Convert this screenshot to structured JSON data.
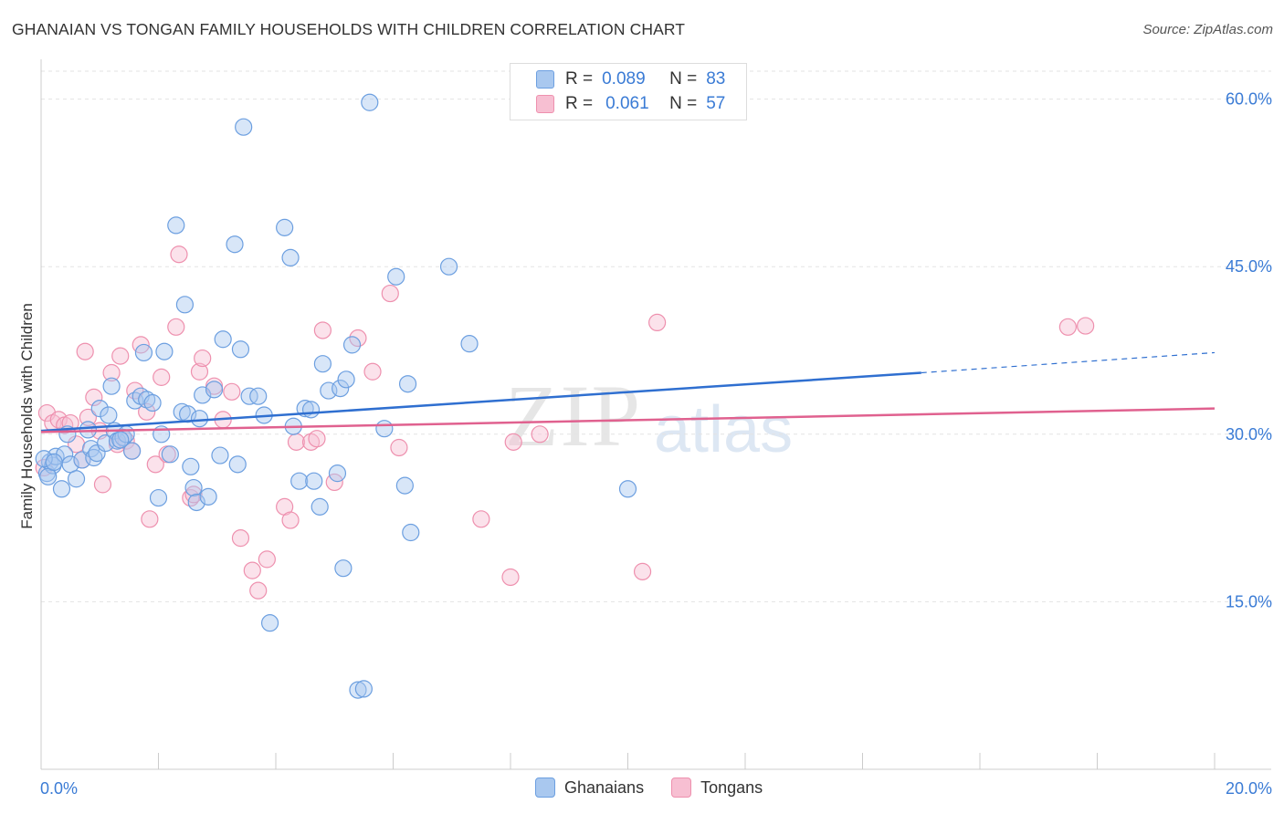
{
  "title": "GHANAIAN VS TONGAN FAMILY HOUSEHOLDS WITH CHILDREN CORRELATION CHART",
  "source": "Source: ZipAtlas.com",
  "watermark": {
    "zip": "ZIP",
    "atlas": "atlas"
  },
  "legend": {
    "r_label": "R =",
    "n_label": "N =",
    "ghanaian": {
      "r": "0.089",
      "n": "83"
    },
    "tongan": {
      "r": "0.061",
      "n": "57"
    }
  },
  "colors": {
    "ghanaian_fill": "#a9c8ef",
    "ghanaian_stroke": "#6c9fe0",
    "ghanaian_line": "#2f6fd0",
    "tongan_fill": "#f7bfd2",
    "tongan_stroke": "#ee90ae",
    "tongan_line": "#e0618f",
    "axis_text": "#3a7bd5"
  },
  "chart_data": {
    "type": "scatter",
    "xlabel": "",
    "ylabel": "Family Households with Children",
    "xlim": [
      0,
      20
    ],
    "ylim": [
      0,
      62.5
    ],
    "x_tick_labels": {
      "min": "0.0%",
      "max": "20.0%"
    },
    "y_ticks": [
      15,
      30,
      45,
      60
    ],
    "y_tick_labels": [
      "15.0%",
      "30.0%",
      "45.0%",
      "60.0%"
    ],
    "series": [
      {
        "name": "Ghanaians",
        "trend": {
          "x0": 0,
          "y0": 30.3,
          "x1": 15.0,
          "y1": 35.5,
          "dash_to_x": 20.0,
          "dash_to_y": 37.3
        },
        "points": [
          [
            0.1,
            26.5
          ],
          [
            0.15,
            27.5
          ],
          [
            0.2,
            27.2
          ],
          [
            0.25,
            28.0
          ],
          [
            0.35,
            25.1
          ],
          [
            0.4,
            28.2
          ],
          [
            0.45,
            30.0
          ],
          [
            0.5,
            27.3
          ],
          [
            0.6,
            26.0
          ],
          [
            0.7,
            27.7
          ],
          [
            0.8,
            30.4
          ],
          [
            0.85,
            28.7
          ],
          [
            0.9,
            27.9
          ],
          [
            0.95,
            28.3
          ],
          [
            1.0,
            32.3
          ],
          [
            1.1,
            29.2
          ],
          [
            1.15,
            31.7
          ],
          [
            1.2,
            34.3
          ],
          [
            1.25,
            30.3
          ],
          [
            1.3,
            29.4
          ],
          [
            1.4,
            29.7
          ],
          [
            1.45,
            30.0
          ],
          [
            1.55,
            28.5
          ],
          [
            1.6,
            33.0
          ],
          [
            1.7,
            33.4
          ],
          [
            1.75,
            37.3
          ],
          [
            1.8,
            33.1
          ],
          [
            1.9,
            32.8
          ],
          [
            2.0,
            24.3
          ],
          [
            2.05,
            30.0
          ],
          [
            2.1,
            37.4
          ],
          [
            2.2,
            28.2
          ],
          [
            2.3,
            48.7
          ],
          [
            2.4,
            32.0
          ],
          [
            2.45,
            41.6
          ],
          [
            2.5,
            31.8
          ],
          [
            2.55,
            27.1
          ],
          [
            2.6,
            25.2
          ],
          [
            2.65,
            23.9
          ],
          [
            2.7,
            31.4
          ],
          [
            2.75,
            33.5
          ],
          [
            2.85,
            24.4
          ],
          [
            2.95,
            34.0
          ],
          [
            3.05,
            28.1
          ],
          [
            3.1,
            38.5
          ],
          [
            3.3,
            47.0
          ],
          [
            3.35,
            27.3
          ],
          [
            3.4,
            37.6
          ],
          [
            3.45,
            57.5
          ],
          [
            3.55,
            33.4
          ],
          [
            3.7,
            33.4
          ],
          [
            3.8,
            31.7
          ],
          [
            3.9,
            13.1
          ],
          [
            4.15,
            48.5
          ],
          [
            4.25,
            45.8
          ],
          [
            4.3,
            30.7
          ],
          [
            4.4,
            25.8
          ],
          [
            4.5,
            32.3
          ],
          [
            4.6,
            32.2
          ],
          [
            4.65,
            25.8
          ],
          [
            4.75,
            23.5
          ],
          [
            4.8,
            36.3
          ],
          [
            4.9,
            33.9
          ],
          [
            5.05,
            26.5
          ],
          [
            5.1,
            34.1
          ],
          [
            5.15,
            18.0
          ],
          [
            5.2,
            34.9
          ],
          [
            5.3,
            38.0
          ],
          [
            5.4,
            7.1
          ],
          [
            5.5,
            7.2
          ],
          [
            5.6,
            59.7
          ],
          [
            5.85,
            30.5
          ],
          [
            6.05,
            44.1
          ],
          [
            6.2,
            25.4
          ],
          [
            6.25,
            34.5
          ],
          [
            6.3,
            21.2
          ],
          [
            6.95,
            45.0
          ],
          [
            7.3,
            38.1
          ],
          [
            10.0,
            25.1
          ],
          [
            0.05,
            27.8
          ],
          [
            0.12,
            26.2
          ],
          [
            0.22,
            27.5
          ],
          [
            1.35,
            29.5
          ]
        ]
      },
      {
        "name": "Tongans",
        "trend": {
          "x0": 0,
          "y0": 30.2,
          "x1": 20.0,
          "y1": 32.3
        },
        "points": [
          [
            0.05,
            27.0
          ],
          [
            0.1,
            31.9
          ],
          [
            0.2,
            31.0
          ],
          [
            0.3,
            31.3
          ],
          [
            0.4,
            30.8
          ],
          [
            0.5,
            31.0
          ],
          [
            0.6,
            29.1
          ],
          [
            0.7,
            27.7
          ],
          [
            0.75,
            37.4
          ],
          [
            0.8,
            31.5
          ],
          [
            0.9,
            33.3
          ],
          [
            1.0,
            30.3
          ],
          [
            1.05,
            25.5
          ],
          [
            1.2,
            35.5
          ],
          [
            1.3,
            29.1
          ],
          [
            1.35,
            37.0
          ],
          [
            1.45,
            29.4
          ],
          [
            1.55,
            28.5
          ],
          [
            1.6,
            33.9
          ],
          [
            1.7,
            38.0
          ],
          [
            1.8,
            32.0
          ],
          [
            1.85,
            22.4
          ],
          [
            1.95,
            27.3
          ],
          [
            2.05,
            35.1
          ],
          [
            2.15,
            28.2
          ],
          [
            2.3,
            39.6
          ],
          [
            2.35,
            46.1
          ],
          [
            2.55,
            24.3
          ],
          [
            2.6,
            24.6
          ],
          [
            2.7,
            35.6
          ],
          [
            2.75,
            36.8
          ],
          [
            2.95,
            34.3
          ],
          [
            3.1,
            31.3
          ],
          [
            3.25,
            33.8
          ],
          [
            3.4,
            20.7
          ],
          [
            3.6,
            17.8
          ],
          [
            3.7,
            16.0
          ],
          [
            3.85,
            18.8
          ],
          [
            4.15,
            23.5
          ],
          [
            4.25,
            22.3
          ],
          [
            4.35,
            29.3
          ],
          [
            4.6,
            29.3
          ],
          [
            4.7,
            29.6
          ],
          [
            4.8,
            39.3
          ],
          [
            5.0,
            25.7
          ],
          [
            5.4,
            38.6
          ],
          [
            5.65,
            35.6
          ],
          [
            5.95,
            42.6
          ],
          [
            6.1,
            28.8
          ],
          [
            7.5,
            22.4
          ],
          [
            8.0,
            17.2
          ],
          [
            8.05,
            29.3
          ],
          [
            8.5,
            30.0
          ],
          [
            10.5,
            40.0
          ],
          [
            10.25,
            17.7
          ],
          [
            17.5,
            39.6
          ],
          [
            17.8,
            39.7
          ]
        ]
      }
    ]
  }
}
